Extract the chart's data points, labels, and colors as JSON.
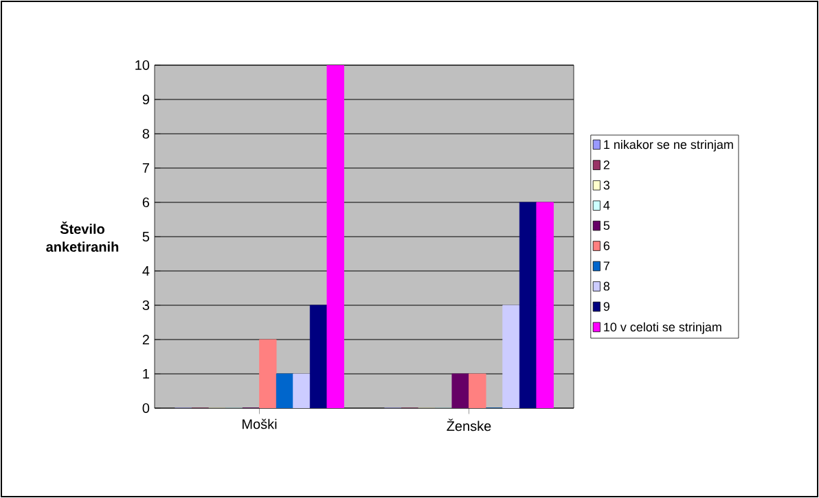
{
  "chart_data": {
    "type": "bar",
    "ylabel": "Število anketiranih",
    "categories": [
      "Moški",
      "Ženske"
    ],
    "series": [
      {
        "name": "1 nikakor se ne strinjam",
        "color": "#9999ff",
        "values": [
          0,
          0
        ]
      },
      {
        "name": "2",
        "color": "#993366",
        "values": [
          0,
          0
        ]
      },
      {
        "name": "3",
        "color": "#ffffcc",
        "values": [
          0,
          0
        ]
      },
      {
        "name": "4",
        "color": "#ccffff",
        "values": [
          0,
          0
        ]
      },
      {
        "name": "5",
        "color": "#660066",
        "values": [
          0,
          1
        ]
      },
      {
        "name": "6",
        "color": "#ff8080",
        "values": [
          2,
          1
        ]
      },
      {
        "name": "7",
        "color": "#0066cc",
        "values": [
          1,
          0
        ]
      },
      {
        "name": "8",
        "color": "#ccccff",
        "values": [
          1,
          3
        ]
      },
      {
        "name": "9",
        "color": "#000080",
        "values": [
          3,
          6
        ]
      },
      {
        "name": "10 v celoti se strinjam",
        "color": "#ff00ff",
        "values": [
          10,
          6
        ]
      }
    ],
    "ylim": [
      0,
      10
    ],
    "yticks": [
      0,
      1,
      2,
      3,
      4,
      5,
      6,
      7,
      8,
      9,
      10
    ],
    "grid": "y",
    "legend": "right"
  }
}
